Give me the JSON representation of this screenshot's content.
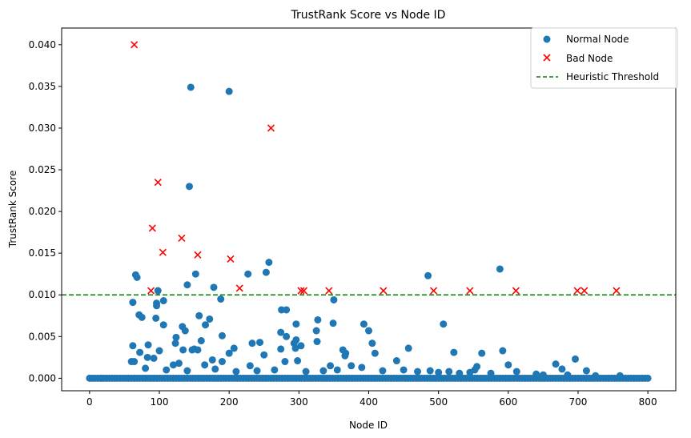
{
  "chart_data": {
    "type": "scatter",
    "title": "TrustRank Score vs Node ID",
    "xlabel": "Node ID",
    "ylabel": "TrustRank Score",
    "xlim": [
      -40,
      840
    ],
    "ylim": [
      -0.0015,
      0.042
    ],
    "xticks": [
      0,
      100,
      200,
      300,
      400,
      500,
      600,
      700,
      800
    ],
    "yticks": [
      0.0,
      0.005,
      0.01,
      0.015,
      0.02,
      0.025,
      0.03,
      0.035,
      0.04
    ],
    "ytick_labels": [
      "0.000",
      "0.005",
      "0.010",
      "0.015",
      "0.020",
      "0.025",
      "0.030",
      "0.035",
      "0.040"
    ],
    "grid": false,
    "legend": "top-right",
    "threshold": {
      "name": "Heuristic Threshold",
      "y": 0.01,
      "color": "#008000",
      "style": "dashed"
    },
    "series": [
      {
        "name": "Normal Node",
        "marker": "circle",
        "color": "#1f77b4",
        "points": [
          [
            145,
            0.0349
          ],
          [
            200,
            0.0344
          ],
          [
            143,
            0.023
          ],
          [
            257,
            0.0139
          ],
          [
            588,
            0.0131
          ],
          [
            253,
            0.0127
          ],
          [
            227,
            0.0125
          ],
          [
            485,
            0.0123
          ],
          [
            152,
            0.0125
          ],
          [
            66,
            0.0124
          ],
          [
            68,
            0.0121
          ],
          [
            140,
            0.0112
          ],
          [
            178,
            0.0109
          ],
          [
            98,
            0.0105
          ],
          [
            62,
            0.0091
          ],
          [
            96,
            0.009
          ],
          [
            350,
            0.0094
          ],
          [
            188,
            0.0095
          ],
          [
            96,
            0.0087
          ],
          [
            106,
            0.0093
          ],
          [
            275,
            0.0082
          ],
          [
            282,
            0.0082
          ],
          [
            71,
            0.0076
          ],
          [
            75,
            0.0073
          ],
          [
            157,
            0.0075
          ],
          [
            172,
            0.0071
          ],
          [
            274,
            0.0055
          ],
          [
            327,
            0.007
          ],
          [
            95,
            0.0072
          ],
          [
            106,
            0.0064
          ],
          [
            133,
            0.0062
          ],
          [
            137,
            0.0057
          ],
          [
            166,
            0.0064
          ],
          [
            190,
            0.0051
          ],
          [
            349,
            0.0066
          ],
          [
            296,
            0.0065
          ],
          [
            393,
            0.0065
          ],
          [
            400,
            0.0057
          ],
          [
            507,
            0.0065
          ],
          [
            282,
            0.005
          ],
          [
            296,
            0.0046
          ],
          [
            325,
            0.0057
          ],
          [
            326,
            0.0044
          ],
          [
            405,
            0.0042
          ],
          [
            293,
            0.0042
          ],
          [
            160,
            0.0045
          ],
          [
            124,
            0.0049
          ],
          [
            123,
            0.0042
          ],
          [
            84,
            0.004
          ],
          [
            62,
            0.0039
          ],
          [
            233,
            0.0042
          ],
          [
            244,
            0.0043
          ],
          [
            303,
            0.0039
          ],
          [
            457,
            0.0036
          ],
          [
            295,
            0.0036
          ],
          [
            274,
            0.0035
          ],
          [
            150,
            0.0035
          ],
          [
            155,
            0.0034
          ],
          [
            147,
            0.0034
          ],
          [
            134,
            0.0034
          ],
          [
            100,
            0.0033
          ],
          [
            72,
            0.0031
          ],
          [
            200,
            0.003
          ],
          [
            207,
            0.0036
          ],
          [
            363,
            0.0034
          ],
          [
            367,
            0.003
          ],
          [
            366,
            0.0027
          ],
          [
            409,
            0.003
          ],
          [
            522,
            0.0031
          ],
          [
            562,
            0.003
          ],
          [
            592,
            0.0033
          ],
          [
            83,
            0.0025
          ],
          [
            92,
            0.0024
          ],
          [
            176,
            0.0022
          ],
          [
            190,
            0.002
          ],
          [
            250,
            0.0028
          ],
          [
            298,
            0.0021
          ],
          [
            280,
            0.002
          ],
          [
            440,
            0.0021
          ],
          [
            696,
            0.0023
          ],
          [
            60,
            0.002
          ],
          [
            64,
            0.002
          ],
          [
            120,
            0.0016
          ],
          [
            128,
            0.0018
          ],
          [
            165,
            0.0016
          ],
          [
            230,
            0.0015
          ],
          [
            345,
            0.0015
          ],
          [
            375,
            0.0015
          ],
          [
            390,
            0.0013
          ],
          [
            555,
            0.0014
          ],
          [
            600,
            0.0016
          ],
          [
            668,
            0.0017
          ],
          [
            677,
            0.0011
          ],
          [
            712,
            0.0009
          ],
          [
            552,
            0.001
          ],
          [
            488,
            0.0009
          ],
          [
            80,
            0.0012
          ],
          [
            110,
            0.001
          ],
          [
            140,
            0.0009
          ],
          [
            180,
            0.0011
          ],
          [
            210,
            0.0008
          ],
          [
            240,
            0.0009
          ],
          [
            265,
            0.001
          ],
          [
            310,
            0.0008
          ],
          [
            335,
            0.0009
          ],
          [
            355,
            0.001
          ],
          [
            420,
            0.0009
          ],
          [
            450,
            0.001
          ],
          [
            470,
            0.0008
          ],
          [
            500,
            0.0007
          ],
          [
            515,
            0.0008
          ],
          [
            530,
            0.0006
          ],
          [
            545,
            0.0007
          ],
          [
            575,
            0.0006
          ],
          [
            612,
            0.0008
          ],
          [
            640,
            0.0005
          ],
          [
            650,
            0.0004
          ],
          [
            685,
            0.0004
          ],
          [
            725,
            0.0003
          ],
          [
            760,
            0.0003
          ]
        ],
        "baseline": {
          "x_start": 0,
          "x_end": 800,
          "step": 4,
          "y": 0.0
        }
      },
      {
        "name": "Bad Node",
        "marker": "x",
        "color": "#ff0000",
        "points": [
          [
            64,
            0.04
          ],
          [
            260,
            0.03
          ],
          [
            98,
            0.0235
          ],
          [
            90,
            0.018
          ],
          [
            132,
            0.0168
          ],
          [
            105,
            0.0151
          ],
          [
            155,
            0.0148
          ],
          [
            202,
            0.0143
          ],
          [
            215,
            0.0108
          ],
          [
            88,
            0.0105
          ],
          [
            303,
            0.0105
          ],
          [
            307,
            0.0105
          ],
          [
            343,
            0.0105
          ],
          [
            421,
            0.0105
          ],
          [
            493,
            0.0105
          ],
          [
            545,
            0.0105
          ],
          [
            611,
            0.0105
          ],
          [
            699,
            0.0105
          ],
          [
            709,
            0.0105
          ],
          [
            755,
            0.0105
          ]
        ]
      }
    ]
  }
}
